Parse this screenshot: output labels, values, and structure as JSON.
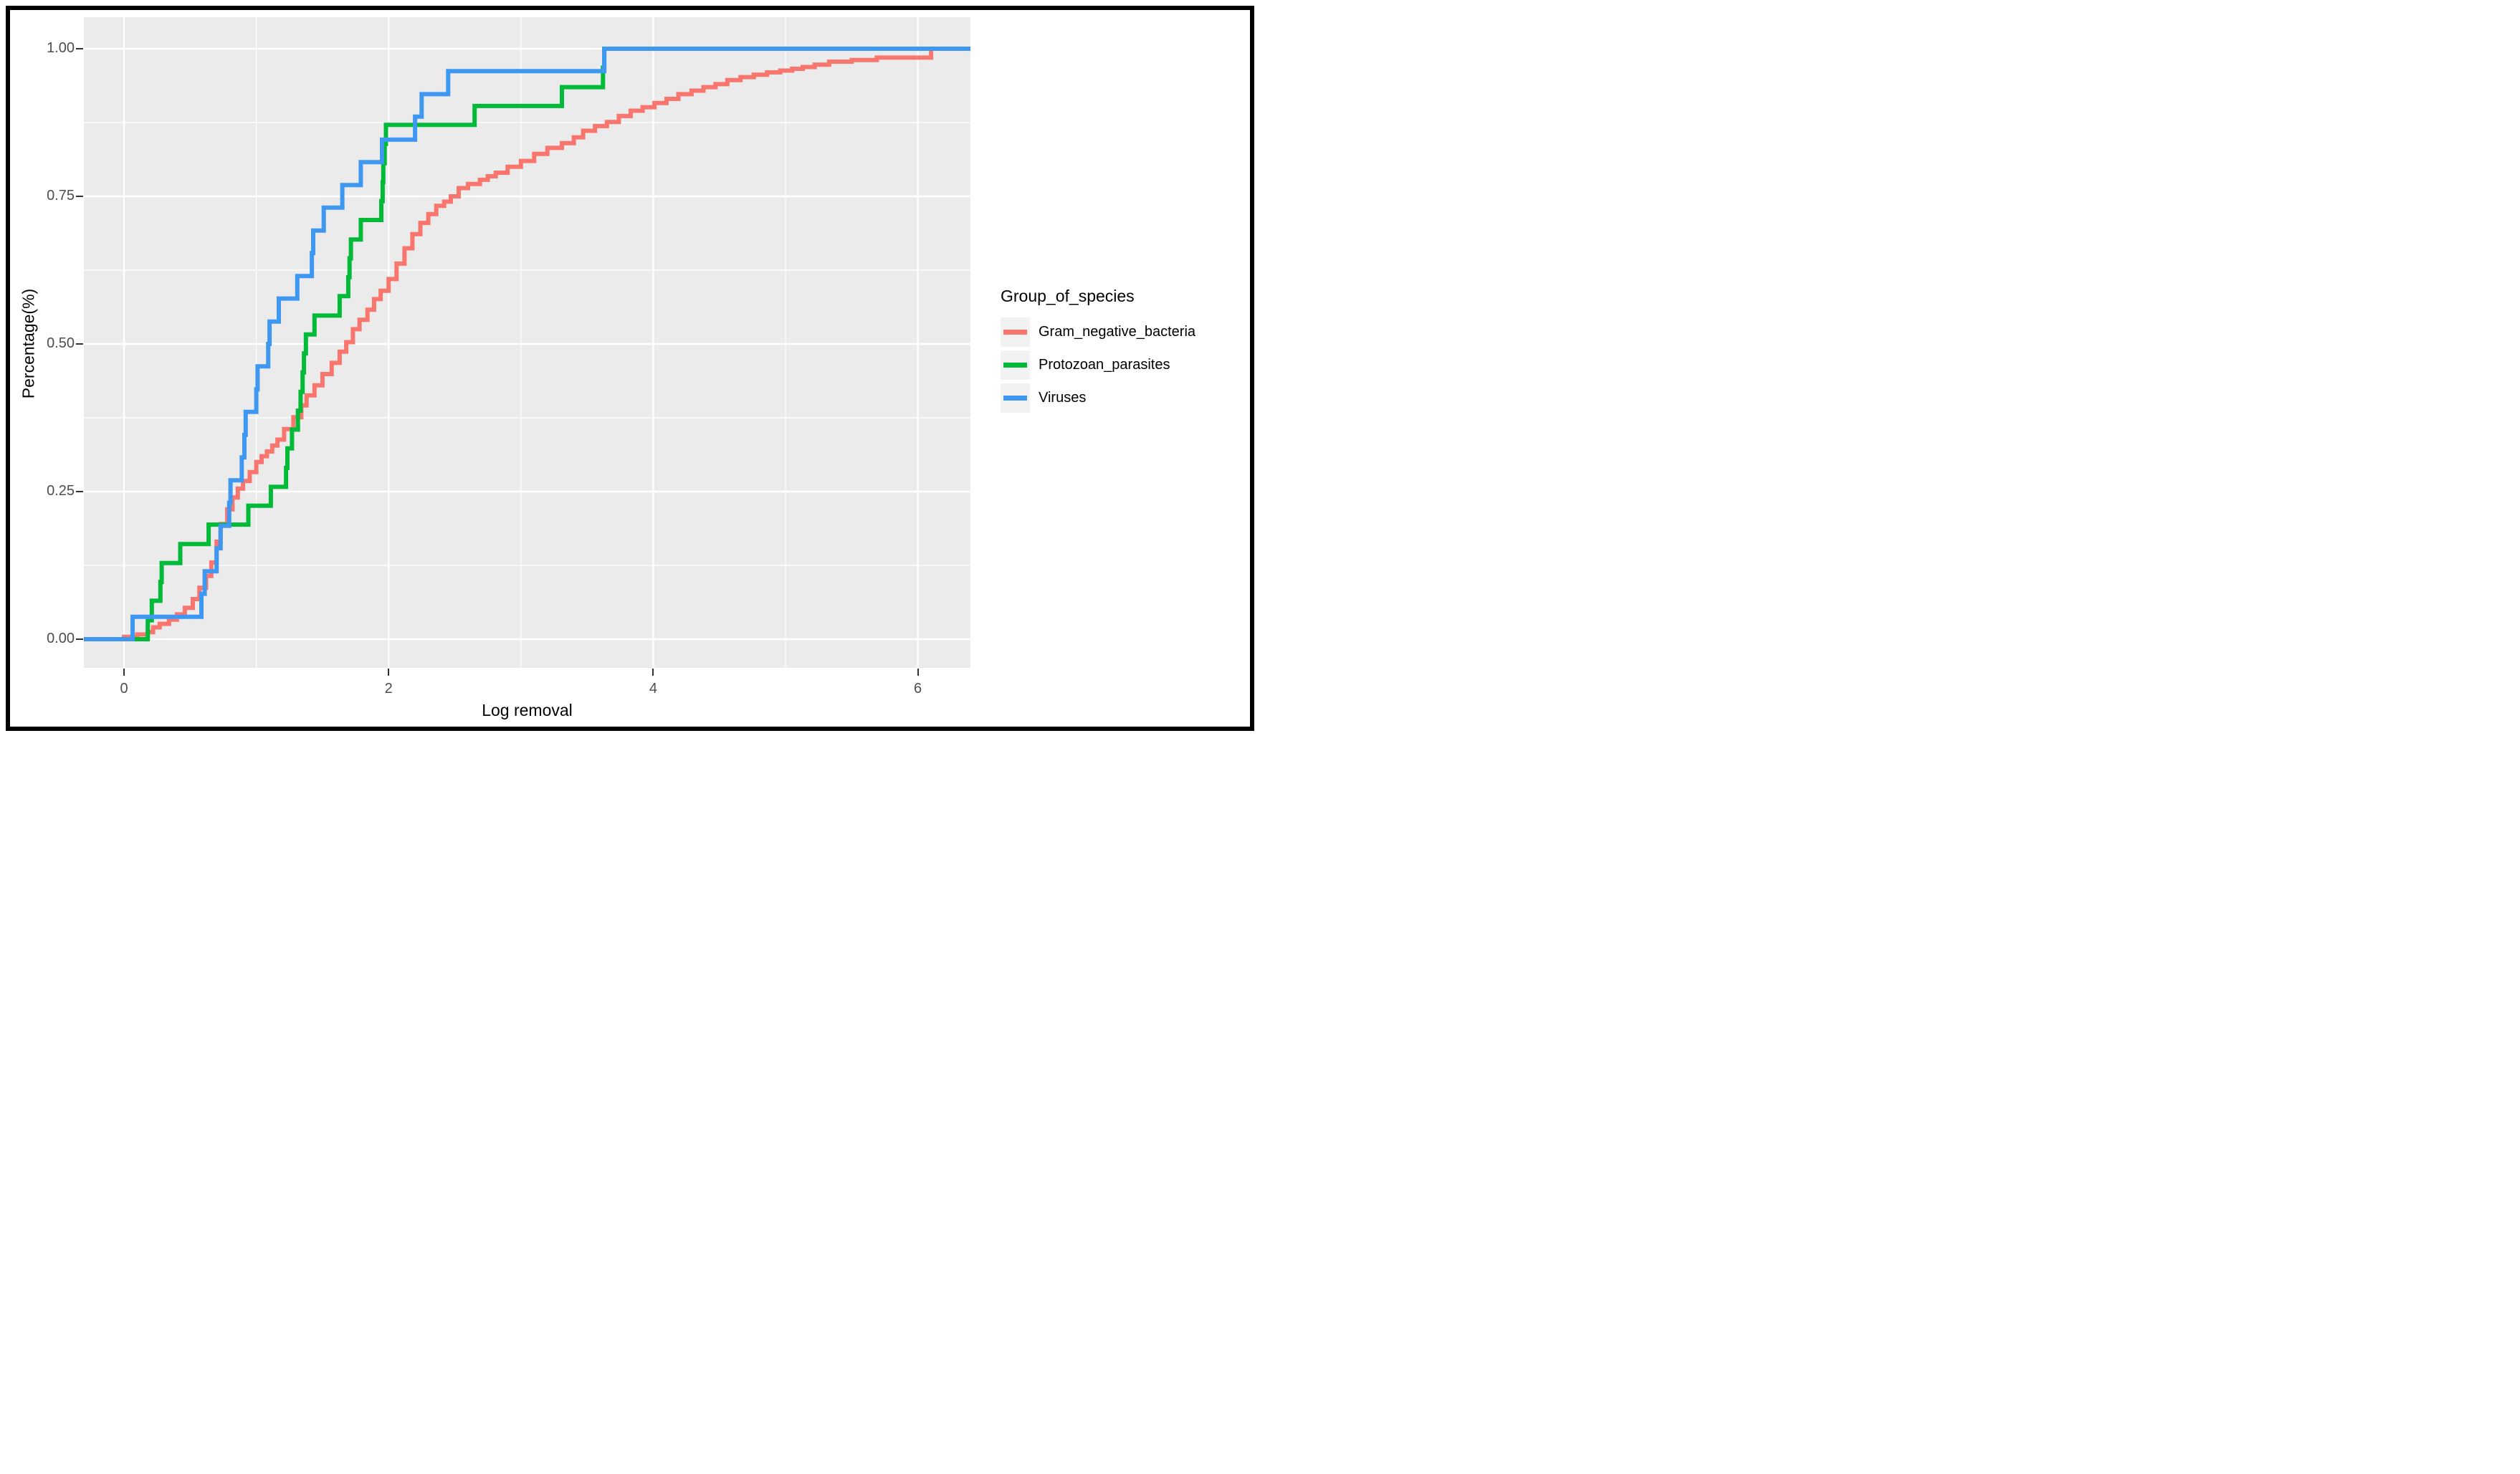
{
  "axis_titles": {
    "x": "Log removal",
    "y": "Percentage(%)"
  },
  "legend": {
    "title": "Group_of_species",
    "entries": [
      {
        "label": "Gram_negative_bacteria",
        "color": "#F8766D"
      },
      {
        "label": "Protozoan_parasites",
        "color": "#00BA38"
      },
      {
        "label": "Viruses",
        "color": "#3E98F1"
      }
    ]
  },
  "chart_data": {
    "type": "line",
    "subtype": "ecdf-step",
    "title": "",
    "xlabel": "Log removal",
    "ylabel": "Percentage(%)",
    "x_ticks": [
      {
        "value": 0,
        "label": "0"
      },
      {
        "value": 2,
        "label": "2"
      },
      {
        "value": 4,
        "label": "4"
      },
      {
        "value": 6,
        "label": "6"
      }
    ],
    "y_ticks": [
      {
        "value": 0,
        "label": "0.00"
      },
      {
        "value": 0.25,
        "label": "0.25"
      },
      {
        "value": 0.5,
        "label": "0.50"
      },
      {
        "value": 0.75,
        "label": "0.75"
      },
      {
        "value": 1,
        "label": "1.00"
      }
    ],
    "x_minor": [
      1,
      3,
      5
    ],
    "y_minor": [
      0.125,
      0.375,
      0.625,
      0.875
    ],
    "xlim": [
      -0.303,
      6.398
    ],
    "ylim": [
      -0.048,
      1.053
    ],
    "grid": "white-on-gray",
    "panel_color": "#EBEBEB",
    "grid_color": "#FFFFFF",
    "legend_position": "right",
    "series": [
      {
        "name": "Gram_negative_bacteria",
        "color": "#F8766D",
        "points": [
          [
            0.0,
            0.004
          ],
          [
            0.1,
            0.008
          ],
          [
            0.18,
            0.012
          ],
          [
            0.22,
            0.02
          ],
          [
            0.27,
            0.026
          ],
          [
            0.34,
            0.033
          ],
          [
            0.4,
            0.042
          ],
          [
            0.46,
            0.053
          ],
          [
            0.52,
            0.068
          ],
          [
            0.57,
            0.087
          ],
          [
            0.62,
            0.107
          ],
          [
            0.66,
            0.13
          ],
          [
            0.7,
            0.165
          ],
          [
            0.73,
            0.195
          ],
          [
            0.78,
            0.22
          ],
          [
            0.82,
            0.24
          ],
          [
            0.86,
            0.255
          ],
          [
            0.9,
            0.268
          ],
          [
            0.95,
            0.283
          ],
          [
            1.0,
            0.3
          ],
          [
            1.04,
            0.31
          ],
          [
            1.08,
            0.318
          ],
          [
            1.12,
            0.328
          ],
          [
            1.16,
            0.338
          ],
          [
            1.21,
            0.356
          ],
          [
            1.28,
            0.376
          ],
          [
            1.34,
            0.396
          ],
          [
            1.38,
            0.413
          ],
          [
            1.44,
            0.43
          ],
          [
            1.5,
            0.449
          ],
          [
            1.57,
            0.468
          ],
          [
            1.63,
            0.487
          ],
          [
            1.68,
            0.503
          ],
          [
            1.73,
            0.525
          ],
          [
            1.78,
            0.541
          ],
          [
            1.84,
            0.558
          ],
          [
            1.89,
            0.576
          ],
          [
            1.94,
            0.59
          ],
          [
            2.0,
            0.61
          ],
          [
            2.06,
            0.636
          ],
          [
            2.12,
            0.662
          ],
          [
            2.18,
            0.686
          ],
          [
            2.24,
            0.705
          ],
          [
            2.3,
            0.72
          ],
          [
            2.36,
            0.734
          ],
          [
            2.42,
            0.741
          ],
          [
            2.47,
            0.75
          ],
          [
            2.53,
            0.764
          ],
          [
            2.6,
            0.771
          ],
          [
            2.69,
            0.778
          ],
          [
            2.75,
            0.784
          ],
          [
            2.81,
            0.79
          ],
          [
            2.9,
            0.8
          ],
          [
            3.0,
            0.81
          ],
          [
            3.1,
            0.822
          ],
          [
            3.2,
            0.832
          ],
          [
            3.31,
            0.84
          ],
          [
            3.4,
            0.85
          ],
          [
            3.47,
            0.861
          ],
          [
            3.56,
            0.869
          ],
          [
            3.65,
            0.876
          ],
          [
            3.74,
            0.886
          ],
          [
            3.83,
            0.895
          ],
          [
            3.92,
            0.901
          ],
          [
            4.01,
            0.908
          ],
          [
            4.1,
            0.915
          ],
          [
            4.19,
            0.923
          ],
          [
            4.29,
            0.929
          ],
          [
            4.38,
            0.935
          ],
          [
            4.47,
            0.94
          ],
          [
            4.56,
            0.947
          ],
          [
            4.66,
            0.952
          ],
          [
            4.76,
            0.956
          ],
          [
            4.86,
            0.96
          ],
          [
            4.96,
            0.963
          ],
          [
            5.05,
            0.966
          ],
          [
            5.13,
            0.969
          ],
          [
            5.22,
            0.973
          ],
          [
            5.33,
            0.978
          ],
          [
            5.5,
            0.981
          ],
          [
            5.69,
            0.985
          ],
          [
            6.1,
            1.0
          ]
        ]
      },
      {
        "name": "Protozoan_parasites",
        "color": "#00BA38",
        "points": [
          [
            0.18,
            0.032
          ],
          [
            0.21,
            0.065
          ],
          [
            0.275,
            0.097
          ],
          [
            0.285,
            0.129
          ],
          [
            0.425,
            0.161
          ],
          [
            0.64,
            0.194
          ],
          [
            0.94,
            0.226
          ],
          [
            1.11,
            0.258
          ],
          [
            1.225,
            0.29
          ],
          [
            1.235,
            0.323
          ],
          [
            1.27,
            0.355
          ],
          [
            1.315,
            0.387
          ],
          [
            1.335,
            0.419
          ],
          [
            1.35,
            0.452
          ],
          [
            1.36,
            0.484
          ],
          [
            1.375,
            0.516
          ],
          [
            1.44,
            0.548
          ],
          [
            1.63,
            0.581
          ],
          [
            1.695,
            0.613
          ],
          [
            1.705,
            0.645
          ],
          [
            1.715,
            0.677
          ],
          [
            1.79,
            0.71
          ],
          [
            1.945,
            0.742
          ],
          [
            1.955,
            0.774
          ],
          [
            1.96,
            0.806
          ],
          [
            1.97,
            0.839
          ],
          [
            1.98,
            0.871
          ],
          [
            2.65,
            0.903
          ],
          [
            3.31,
            0.935
          ],
          [
            3.62,
            0.968
          ],
          [
            3.63,
            1.0
          ]
        ]
      },
      {
        "name": "Viruses",
        "color": "#3E98F1",
        "points": [
          [
            0.065,
            0.038
          ],
          [
            0.585,
            0.077
          ],
          [
            0.61,
            0.115
          ],
          [
            0.7,
            0.154
          ],
          [
            0.73,
            0.192
          ],
          [
            0.795,
            0.231
          ],
          [
            0.805,
            0.269
          ],
          [
            0.89,
            0.308
          ],
          [
            0.91,
            0.346
          ],
          [
            0.92,
            0.385
          ],
          [
            1.0,
            0.423
          ],
          [
            1.01,
            0.462
          ],
          [
            1.09,
            0.5
          ],
          [
            1.1,
            0.538
          ],
          [
            1.17,
            0.577
          ],
          [
            1.31,
            0.615
          ],
          [
            1.42,
            0.654
          ],
          [
            1.43,
            0.692
          ],
          [
            1.51,
            0.731
          ],
          [
            1.65,
            0.769
          ],
          [
            1.79,
            0.808
          ],
          [
            1.95,
            0.846
          ],
          [
            2.2,
            0.885
          ],
          [
            2.25,
            0.923
          ],
          [
            2.45,
            0.962
          ],
          [
            3.63,
            1.0
          ]
        ]
      }
    ]
  }
}
